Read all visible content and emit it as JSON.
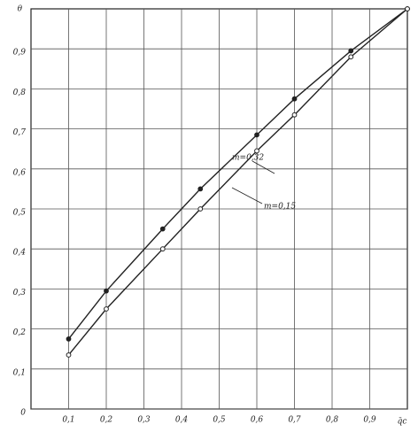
{
  "chart_data": {
    "type": "line",
    "x_label": "q̄c",
    "y_label": "θ",
    "xlim": [
      0,
      1
    ],
    "ylim": [
      0,
      1
    ],
    "xticks": [
      {
        "value": 0.1,
        "label": "0,1"
      },
      {
        "value": 0.2,
        "label": "0,2"
      },
      {
        "value": 0.3,
        "label": "0,3"
      },
      {
        "value": 0.4,
        "label": "0,4"
      },
      {
        "value": 0.5,
        "label": "0,5"
      },
      {
        "value": 0.6,
        "label": "0,6"
      },
      {
        "value": 0.7,
        "label": "0,7"
      },
      {
        "value": 0.8,
        "label": "0,8"
      },
      {
        "value": 0.9,
        "label": "0,9"
      }
    ],
    "yticks": [
      0,
      {
        "value": 0.1,
        "label": "0,1"
      },
      {
        "value": 0.2,
        "label": "0,2"
      },
      {
        "value": 0.3,
        "label": "0,3"
      },
      {
        "value": 0.4,
        "label": "0,4"
      },
      {
        "value": 0.5,
        "label": "0,5"
      },
      {
        "value": 0.6,
        "label": "0,6"
      },
      {
        "value": 0.7,
        "label": "0,7"
      },
      {
        "value": 0.8,
        "label": "0,8"
      },
      {
        "value": 0.9,
        "label": "0,9"
      }
    ],
    "grid": true,
    "series": [
      {
        "name": "m=0,32",
        "color": "#222222",
        "marker": "filled",
        "x": [
          0.1,
          0.2,
          0.35,
          0.45,
          0.6,
          0.7,
          0.85,
          1
        ],
        "values": [
          0.175,
          0.295,
          0.45,
          0.55,
          0.685,
          0.775,
          0.895,
          1
        ]
      },
      {
        "name": "m=0,15",
        "color": "#222222",
        "marker": "open",
        "x": [
          0.1,
          0.2,
          0.35,
          0.45,
          0.6,
          0.7,
          0.85,
          1
        ],
        "values": [
          0.135,
          0.25,
          0.4,
          0.5,
          0.645,
          0.735,
          0.88,
          1
        ]
      }
    ]
  }
}
